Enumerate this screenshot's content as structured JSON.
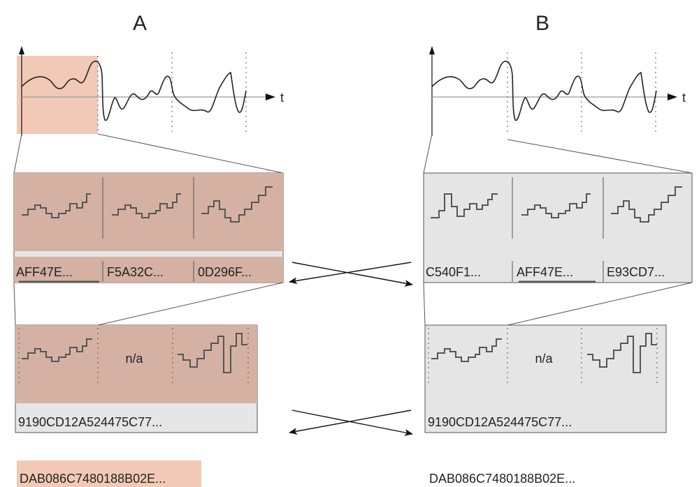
{
  "colors": {
    "highlight": "#f1c9b6",
    "cell_fill_a": "#d5b1a3",
    "panel_fill_b": "#e5e5e5",
    "label_bar": "#e6e6e6",
    "stroke": "#555555",
    "text": "#222222"
  },
  "column_a": {
    "title": "A",
    "axis_label": "t",
    "segment_hashes": [
      "AFF47E...",
      "F5A32C...",
      "0D296F..."
    ],
    "combined": {
      "cells": [
        "",
        "n/a",
        ""
      ],
      "hash": "9190CD12A524475C77..."
    },
    "final_hash": "DAB086C7480188B02E..."
  },
  "column_b": {
    "title": "B",
    "axis_label": "t",
    "segment_hashes": [
      "C540F1...",
      "AFF47E...",
      "E93CD7..."
    ],
    "combined": {
      "cells": [
        "",
        "n/a",
        ""
      ],
      "hash": "9190CD12A524475C77..."
    },
    "final_hash": "DAB086C7480188B02E..."
  }
}
